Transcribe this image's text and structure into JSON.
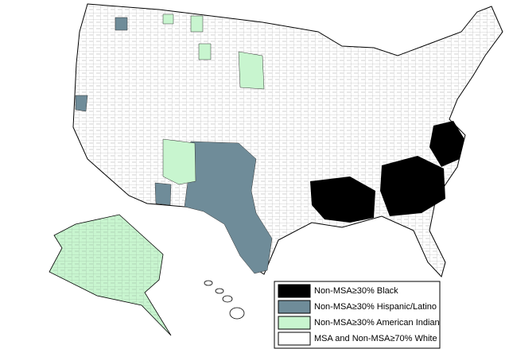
{
  "legend": {
    "items": [
      {
        "label": "Non-MSA≥30% Black",
        "color": "#000000"
      },
      {
        "label": "Non-MSA≥30% Hispanic/Latino",
        "color": "#6f8c99"
      },
      {
        "label": "Non-MSA≥30% American Indian",
        "color": "#c8f5cf"
      },
      {
        "label": "MSA and Non-MSA≥70% White",
        "color": "#ffffff"
      }
    ]
  }
}
